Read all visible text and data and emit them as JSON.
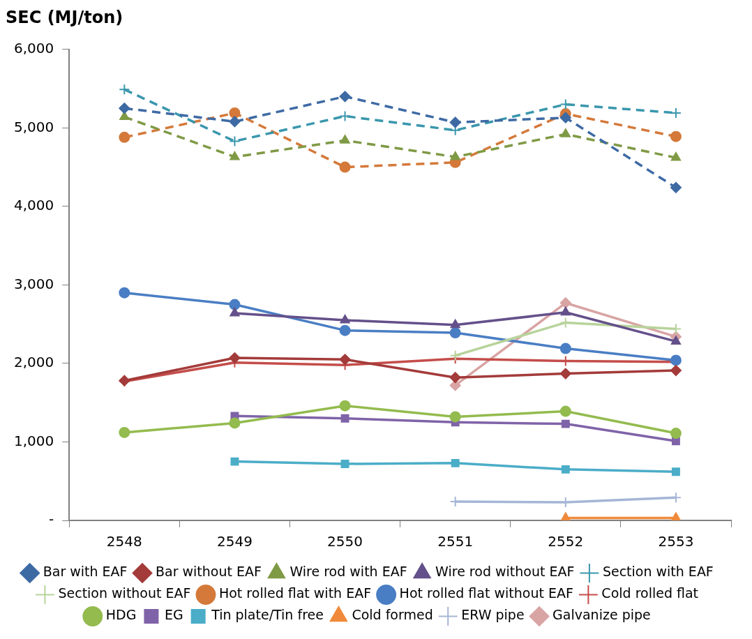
{
  "chart_data": {
    "type": "line",
    "ylabel": "SEC (MJ/ton)",
    "categories": [
      "2548",
      "2549",
      "2550",
      "2551",
      "2552",
      "2553"
    ],
    "ylim": [
      0,
      6000
    ],
    "yticks": [
      {
        "value": 0,
        "label": "-"
      },
      {
        "value": 1000,
        "label": "1,000"
      },
      {
        "value": 2000,
        "label": "2,000"
      },
      {
        "value": 3000,
        "label": "3,000"
      },
      {
        "value": 4000,
        "label": "4,000"
      },
      {
        "value": 5000,
        "label": "5,000"
      },
      {
        "value": 6000,
        "label": "6,000"
      }
    ],
    "grid": false,
    "legend": "bottom",
    "series": [
      {
        "name": "Bar with EAF",
        "color": "#3e6aa4",
        "marker": "diamond",
        "line_style": "dashed",
        "values": [
          5250,
          5080,
          5400,
          5070,
          5130,
          4240
        ]
      },
      {
        "name": "Bar without EAF",
        "color": "#a33b3a",
        "marker": "diamond",
        "line_style": "solid",
        "values": [
          1780,
          2070,
          2050,
          1820,
          1870,
          1910
        ]
      },
      {
        "name": "Wire rod with EAF",
        "color": "#7f9a45",
        "marker": "triangle",
        "line_style": "dashed",
        "values": [
          5140,
          4630,
          4840,
          4630,
          4920,
          4620
        ]
      },
      {
        "name": "Wire rod without EAF",
        "color": "#64508a",
        "marker": "triangle",
        "line_style": "solid",
        "values": [
          null,
          2640,
          2550,
          2490,
          2650,
          2280
        ]
      },
      {
        "name": "Section with EAF",
        "color": "#3a97ad",
        "marker": "cross",
        "line_style": "dashed",
        "values": [
          5490,
          4830,
          5150,
          4970,
          5300,
          5190
        ]
      },
      {
        "name": "Section without EAF",
        "color": "#b8d39b",
        "marker": "cross",
        "line_style": "solid",
        "values": [
          null,
          null,
          null,
          2100,
          2520,
          2440
        ]
      },
      {
        "name": "Hot rolled flat with EAF",
        "color": "#d4793a",
        "marker": "circle",
        "line_style": "dashed",
        "values": [
          4880,
          5190,
          4500,
          4560,
          5180,
          4890
        ]
      },
      {
        "name": "Hot rolled flat without EAF",
        "color": "#4a7ec4",
        "marker": "circle",
        "line_style": "solid",
        "values": [
          2900,
          2750,
          2420,
          2390,
          2190,
          2040
        ]
      },
      {
        "name": "Cold rolled flat",
        "color": "#c44d4a",
        "marker": "cross",
        "line_style": "solid",
        "values": [
          1770,
          2010,
          1980,
          2060,
          2030,
          2020
        ]
      },
      {
        "name": "HDG",
        "color": "#93bb4e",
        "marker": "circle",
        "line_style": "solid",
        "values": [
          1120,
          1240,
          1460,
          1320,
          1390,
          1110
        ]
      },
      {
        "name": "EG",
        "color": "#7f63a8",
        "marker": "square",
        "line_style": "solid",
        "values": [
          null,
          1330,
          1300,
          1250,
          1230,
          1010
        ]
      },
      {
        "name": "Tin plate/Tin free",
        "color": "#4badc8",
        "marker": "square",
        "line_style": "solid",
        "values": [
          null,
          750,
          720,
          730,
          650,
          620
        ]
      },
      {
        "name": "Cold formed",
        "color": "#f08a3a",
        "marker": "triangle",
        "line_style": "solid",
        "values": [
          null,
          null,
          null,
          null,
          30,
          30
        ]
      },
      {
        "name": "ERW pipe",
        "color": "#a5b6d6",
        "marker": "cross",
        "line_style": "solid",
        "values": [
          null,
          null,
          null,
          240,
          230,
          290
        ]
      },
      {
        "name": "Galvanize pipe",
        "color": "#d9a4a4",
        "marker": "diamond",
        "line_style": "solid",
        "values": [
          null,
          null,
          null,
          1720,
          2770,
          2340
        ]
      }
    ]
  }
}
